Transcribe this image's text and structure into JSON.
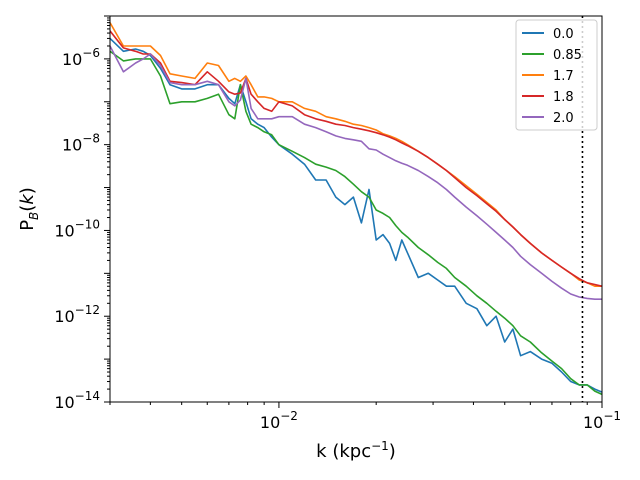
{
  "chart_data": {
    "type": "line",
    "scale": {
      "x": "log",
      "y": "log"
    },
    "xlabel": "k (kpc$^{-1}$)",
    "ylabel": "P$_B$($k$)",
    "xlim": [
      0.003,
      0.1
    ],
    "ylim": [
      1e-14,
      1e-05
    ],
    "x_ticks": [
      {
        "value": 0.01,
        "base": "10",
        "exp": "−2"
      },
      {
        "value": 0.1,
        "base": "10",
        "exp": "−1"
      }
    ],
    "y_ticks": [
      {
        "value": 1e-06,
        "base": "10",
        "exp": "−6"
      },
      {
        "value": 1e-08,
        "base": "10",
        "exp": "−8"
      },
      {
        "value": 1e-10,
        "base": "10",
        "exp": "−10"
      },
      {
        "value": 1e-12,
        "base": "10",
        "exp": "−12"
      },
      {
        "value": 1e-14,
        "base": "10",
        "exp": "−14"
      }
    ],
    "vline": {
      "x": 0.087,
      "style": "dotted",
      "color": "#000000"
    },
    "legend_position": "top-right",
    "series": [
      {
        "name": "0.0",
        "color": "#1f77b4",
        "x": [
          0.003,
          0.0033,
          0.0036,
          0.0038,
          0.004,
          0.0043,
          0.0046,
          0.005,
          0.0055,
          0.006,
          0.0065,
          0.007,
          0.0073,
          0.0076,
          0.0079,
          0.0082,
          0.0086,
          0.009,
          0.0095,
          0.01,
          0.011,
          0.012,
          0.013,
          0.014,
          0.015,
          0.016,
          0.017,
          0.018,
          0.019,
          0.02,
          0.021,
          0.022,
          0.023,
          0.024,
          0.025,
          0.027,
          0.029,
          0.031,
          0.033,
          0.035,
          0.038,
          0.041,
          0.044,
          0.047,
          0.05,
          0.053,
          0.056,
          0.06,
          0.065,
          0.07,
          0.075,
          0.08,
          0.085,
          0.09,
          0.095,
          0.1
        ],
        "y": [
          3e-06,
          1.5e-06,
          1.7e-06,
          1.5e-06,
          1.2e-06,
          6e-07,
          2.5e-07,
          2e-07,
          2e-07,
          2.5e-07,
          2.5e-07,
          1.2e-07,
          9e-08,
          2.5e-07,
          1e-07,
          4e-08,
          3e-08,
          2.5e-08,
          1.5e-08,
          1e-08,
          6e-09,
          3.5e-09,
          1.5e-09,
          1.5e-09,
          6e-10,
          4e-10,
          6e-10,
          1.5e-10,
          9e-10,
          6e-11,
          8e-11,
          5e-11,
          2e-11,
          6e-11,
          3e-11,
          8e-12,
          1e-11,
          7e-12,
          5e-12,
          5e-12,
          2e-12,
          1.5e-12,
          6e-13,
          1e-12,
          2.5e-13,
          5e-13,
          1.2e-13,
          1.5e-13,
          1e-13,
          8e-14,
          5e-14,
          3e-14,
          2.5e-14,
          2.5e-14,
          2e-14,
          1.7e-14
        ]
      },
      {
        "name": "0.85",
        "color": "#2ca02c",
        "x": [
          0.003,
          0.0033,
          0.0036,
          0.0038,
          0.004,
          0.0043,
          0.0046,
          0.005,
          0.0055,
          0.006,
          0.0065,
          0.007,
          0.0073,
          0.0076,
          0.0079,
          0.0082,
          0.0086,
          0.009,
          0.0095,
          0.01,
          0.011,
          0.012,
          0.013,
          0.014,
          0.015,
          0.016,
          0.017,
          0.018,
          0.019,
          0.02,
          0.021,
          0.022,
          0.023,
          0.024,
          0.025,
          0.027,
          0.029,
          0.031,
          0.033,
          0.035,
          0.038,
          0.041,
          0.044,
          0.047,
          0.05,
          0.053,
          0.056,
          0.06,
          0.065,
          0.07,
          0.075,
          0.08,
          0.085,
          0.09,
          0.095,
          0.1
        ],
        "y": [
          1.5e-06,
          9e-07,
          1e-06,
          1e-06,
          1e-06,
          4e-07,
          9e-08,
          1e-07,
          1e-07,
          1.2e-07,
          1.5e-07,
          5e-08,
          4e-08,
          2.5e-07,
          6e-08,
          3e-08,
          2.5e-08,
          2e-08,
          1.7e-08,
          1e-08,
          7e-09,
          5e-09,
          3.5e-09,
          3e-09,
          2.5e-09,
          1.8e-09,
          1.2e-09,
          8e-10,
          6e-10,
          3e-10,
          2.5e-10,
          2e-10,
          1.3e-10,
          9e-11,
          7e-11,
          4e-11,
          2.7e-11,
          1.8e-11,
          1.3e-11,
          8e-12,
          5e-12,
          3e-12,
          2e-12,
          1.3e-12,
          9e-13,
          6e-13,
          3.5e-13,
          2.5e-13,
          1.4e-13,
          9e-14,
          6e-14,
          3.5e-14,
          2.5e-14,
          2.5e-14,
          1.8e-14,
          1.5e-14
        ]
      },
      {
        "name": "1.7",
        "color": "#ff7f0e",
        "x": [
          0.003,
          0.0033,
          0.0036,
          0.0038,
          0.004,
          0.0043,
          0.0046,
          0.005,
          0.0055,
          0.006,
          0.0065,
          0.007,
          0.0073,
          0.0076,
          0.0079,
          0.0082,
          0.0086,
          0.009,
          0.0095,
          0.01,
          0.011,
          0.012,
          0.013,
          0.014,
          0.015,
          0.016,
          0.017,
          0.018,
          0.019,
          0.02,
          0.021,
          0.022,
          0.023,
          0.024,
          0.025,
          0.027,
          0.029,
          0.031,
          0.033,
          0.035,
          0.038,
          0.041,
          0.044,
          0.047,
          0.05,
          0.053,
          0.056,
          0.06,
          0.065,
          0.07,
          0.075,
          0.08,
          0.085,
          0.09,
          0.095,
          0.1
        ],
        "y": [
          7e-06,
          2e-06,
          2e-06,
          2e-06,
          2e-06,
          1.2e-06,
          4.5e-07,
          4e-07,
          3.5e-07,
          8e-07,
          7e-07,
          3e-07,
          3.5e-07,
          3e-07,
          4e-07,
          2.5e-07,
          1.3e-07,
          1.3e-07,
          1.2e-07,
          1e-07,
          1e-07,
          7e-08,
          6e-08,
          4.5e-08,
          4e-08,
          3.5e-08,
          3e-08,
          2.8e-08,
          2.5e-08,
          2.2e-08,
          1.8e-08,
          1.6e-08,
          1.4e-08,
          1.2e-08,
          1e-08,
          7e-09,
          5e-09,
          3.5e-09,
          2.5e-09,
          1.8e-09,
          1.1e-09,
          7e-10,
          4.5e-10,
          3e-10,
          1.8e-10,
          1.2e-10,
          8e-11,
          5e-11,
          3e-11,
          2e-11,
          1.4e-11,
          1e-11,
          7e-12,
          6e-12,
          5e-12,
          5e-12
        ]
      },
      {
        "name": "1.8",
        "color": "#d62728",
        "x": [
          0.003,
          0.0033,
          0.0036,
          0.0038,
          0.004,
          0.0043,
          0.0046,
          0.005,
          0.0055,
          0.006,
          0.0065,
          0.007,
          0.0073,
          0.0076,
          0.0079,
          0.0082,
          0.0086,
          0.009,
          0.0095,
          0.01,
          0.011,
          0.012,
          0.013,
          0.014,
          0.015,
          0.016,
          0.017,
          0.018,
          0.019,
          0.02,
          0.021,
          0.022,
          0.023,
          0.024,
          0.025,
          0.027,
          0.029,
          0.031,
          0.033,
          0.035,
          0.038,
          0.041,
          0.044,
          0.047,
          0.05,
          0.053,
          0.056,
          0.06,
          0.065,
          0.07,
          0.075,
          0.08,
          0.085,
          0.09,
          0.095,
          0.1
        ],
        "y": [
          4.5e-06,
          1.8e-06,
          1.5e-06,
          1.3e-06,
          1.3e-06,
          8e-07,
          3e-07,
          2.8e-07,
          2.5e-07,
          5e-07,
          3e-07,
          1.7e-07,
          1.5e-07,
          1.6e-07,
          3.5e-07,
          1.5e-07,
          1e-07,
          7e-08,
          6e-08,
          1e-07,
          8e-08,
          5e-08,
          4e-08,
          3.5e-08,
          3e-08,
          2.8e-08,
          2.5e-08,
          2.3e-08,
          2.1e-08,
          1.9e-08,
          1.7e-08,
          1.5e-08,
          1.3e-08,
          1.1e-08,
          9.5e-09,
          7e-09,
          5e-09,
          3.5e-09,
          2.5e-09,
          1.7e-09,
          1e-09,
          6.5e-10,
          4.2e-10,
          2.8e-10,
          1.8e-10,
          1.2e-10,
          8e-11,
          5e-11,
          3e-11,
          2e-11,
          1.4e-11,
          1e-11,
          7.5e-12,
          6e-12,
          5.5e-12,
          5e-12
        ]
      },
      {
        "name": "2.0",
        "color": "#9467bd",
        "x": [
          0.003,
          0.0033,
          0.0036,
          0.0038,
          0.004,
          0.0043,
          0.0046,
          0.005,
          0.0055,
          0.006,
          0.0065,
          0.007,
          0.0073,
          0.0076,
          0.0079,
          0.0082,
          0.0086,
          0.009,
          0.0095,
          0.01,
          0.011,
          0.012,
          0.013,
          0.014,
          0.015,
          0.016,
          0.017,
          0.018,
          0.019,
          0.02,
          0.021,
          0.022,
          0.023,
          0.024,
          0.025,
          0.027,
          0.029,
          0.031,
          0.033,
          0.035,
          0.038,
          0.041,
          0.044,
          0.047,
          0.05,
          0.053,
          0.056,
          0.06,
          0.065,
          0.07,
          0.075,
          0.08,
          0.085,
          0.09,
          0.095,
          0.1
        ],
        "y": [
          2e-06,
          5e-07,
          8e-07,
          1e-06,
          1.3e-06,
          7e-07,
          2.8e-07,
          2.5e-07,
          2.5e-07,
          3e-07,
          2.5e-07,
          1e-07,
          8e-08,
          1.1e-07,
          3.5e-07,
          7e-08,
          4e-08,
          4e-08,
          4e-08,
          4.5e-08,
          4.5e-08,
          3e-08,
          2.5e-08,
          2e-08,
          1.6e-08,
          1.4e-08,
          1.3e-08,
          1.2e-08,
          8e-09,
          7.5e-09,
          6e-09,
          5e-09,
          4.2e-09,
          3.7e-09,
          3.3e-09,
          2.5e-09,
          1.8e-09,
          1.3e-09,
          9e-10,
          6e-10,
          3.5e-10,
          2.2e-10,
          1.4e-10,
          9e-11,
          6e-11,
          4e-11,
          2.5e-11,
          1.6e-11,
          1e-11,
          6.5e-12,
          4.5e-12,
          3.3e-12,
          2.8e-12,
          2.6e-12,
          2.5e-12,
          2.5e-12
        ]
      }
    ]
  }
}
